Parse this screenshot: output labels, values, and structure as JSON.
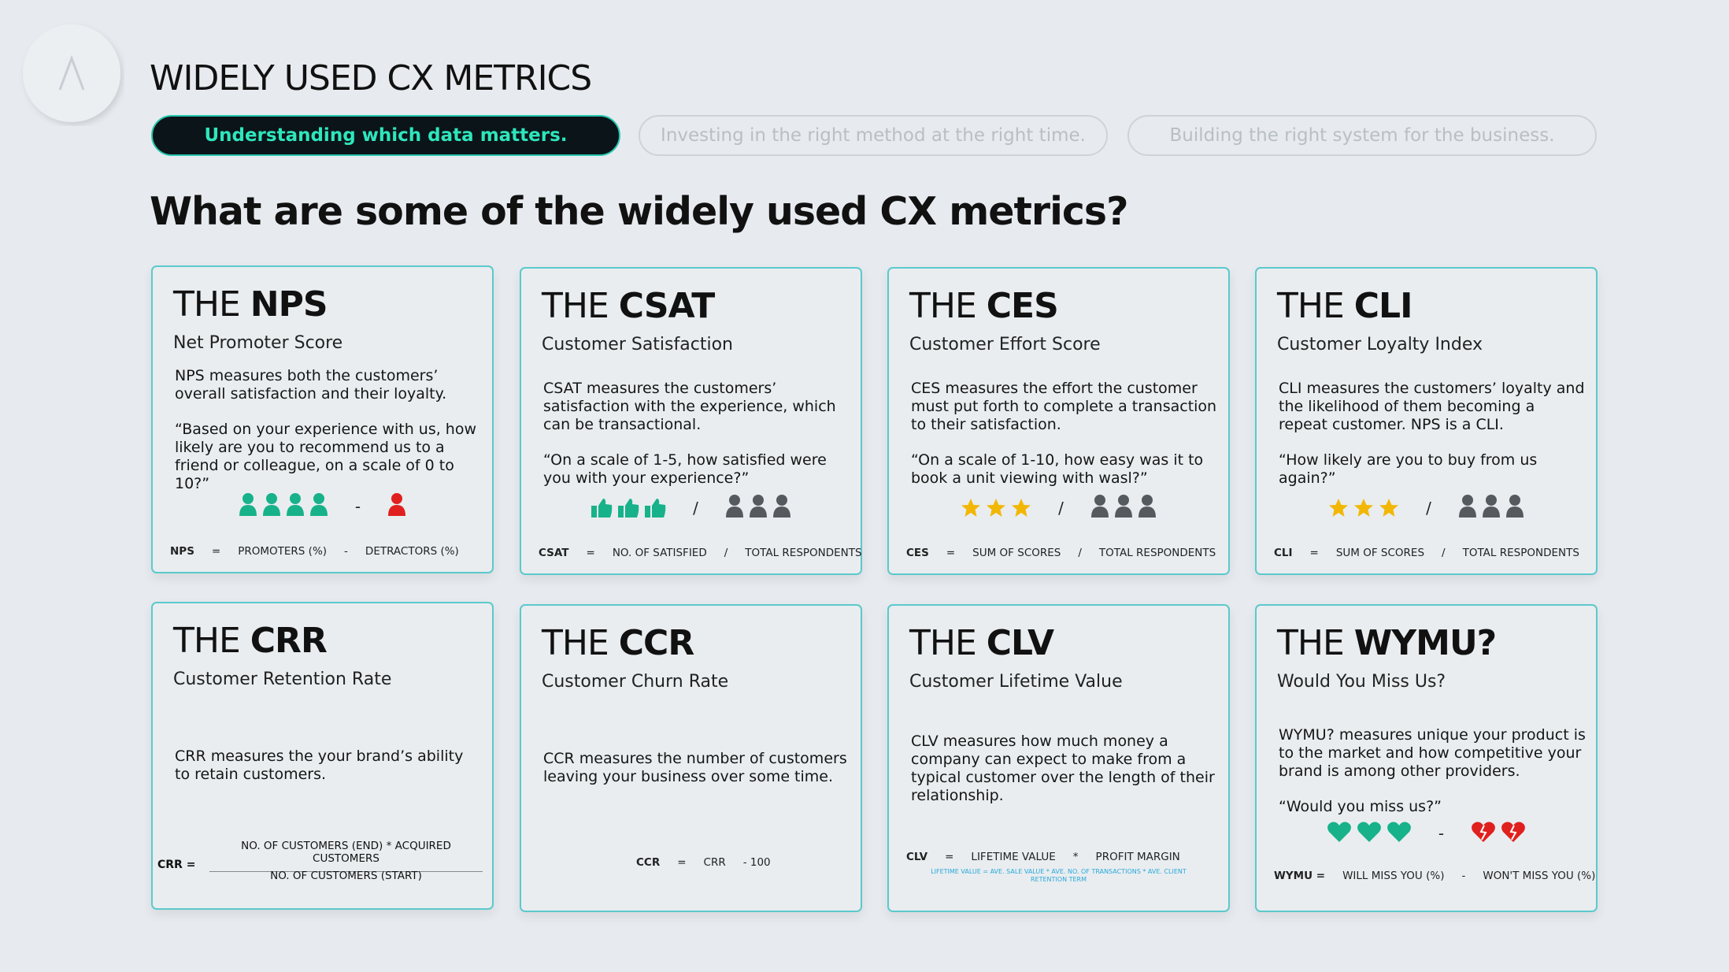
{
  "header": {
    "title": "WIDELY USED CX METRICS"
  },
  "tabs": [
    "Understanding which data matters.",
    "Investing in the right method at the right time.",
    "Building the right system for the business."
  ],
  "question": "What are some of the widely used CX metrics?",
  "cards": [
    {
      "prefix": "THE",
      "abbr": "NPS",
      "name": "Net Promoter Score",
      "description": "NPS measures both the customers’ overall satisfaction and their loyalty.",
      "quote": "“Based on your experience with us, how likely are you to recommend us to a friend or colleague, on a scale of 0 to 10?”",
      "icon_operator": "-",
      "formula": [
        "NPS",
        "=",
        "PROMOTERS (%)",
        "-",
        "DETRACTORS (%)"
      ]
    },
    {
      "prefix": "THE",
      "abbr": "CSAT",
      "name": "Customer Satisfaction",
      "description": "CSAT measures the customers’ satisfaction with the experience, which can be transactional.",
      "quote": "“On a scale of 1-5, how satisfied were you with your experience?”",
      "icon_operator": "/",
      "formula": [
        "CSAT",
        "=",
        "NO. OF SATISFIED",
        "/",
        "TOTAL RESPONDENTS"
      ]
    },
    {
      "prefix": "THE",
      "abbr": "CES",
      "name": "Customer Effort Score",
      "description": "CES measures the effort the customer must put forth to complete a transaction to their satisfaction.",
      "quote": "“On a scale of 1-10, how easy was it to book a unit viewing with wasl?”",
      "icon_operator": "/",
      "formula": [
        "CES",
        "=",
        "SUM OF SCORES",
        "/",
        "TOTAL RESPONDENTS"
      ]
    },
    {
      "prefix": "THE",
      "abbr": "CLI",
      "name": "Customer Loyalty Index",
      "description": "CLI measures the customers’ loyalty and the likelihood of them becoming a repeat customer. NPS is a CLI.",
      "quote": "“How likely are you to buy from us again?”",
      "icon_operator": "/",
      "formula": [
        "CLI",
        "=",
        "SUM OF SCORES",
        "/",
        "TOTAL RESPONDENTS"
      ]
    },
    {
      "prefix": "THE",
      "abbr": "CRR",
      "name": "Customer Retention Rate",
      "description": "CRR measures the your brand’s ability to retain customers.",
      "formula": [
        "CRR ="
      ],
      "numerator": "NO. OF CUSTOMERS (END) * ACQUIRED CUSTOMERS",
      "denominator": "NO. OF CUSTOMERS (START)"
    },
    {
      "prefix": "THE",
      "abbr": "CCR",
      "name": "Customer Churn Rate",
      "description": "CCR measures the number of customers leaving your business over some time.",
      "formula": [
        "CCR",
        "=",
        "CRR",
        "- 100"
      ]
    },
    {
      "prefix": "THE",
      "abbr": "CLV",
      "name": "Customer Lifetime Value",
      "description": "CLV measures how much money a company can expect to make from a typical customer over the length of their relationship.",
      "formula": [
        "CLV",
        "=",
        "LIFETIME VALUE",
        "*",
        "PROFIT MARGIN"
      ],
      "formula_note": "LIFETIME VALUE = AVE. SALE VALUE * AVE. NO. OF TRANSACTIONS * AVE. CLIENT RETENTION TERM"
    },
    {
      "prefix": "THE",
      "abbr": "WYMU?",
      "name": "Would You Miss Us?",
      "description": "WYMU? measures unique your product is to the market and how competitive your brand is among other providers.",
      "quote": "“Would you miss us?”",
      "icon_operator": "-",
      "formula": [
        "WYMU =",
        "WILL MISS YOU (%)",
        "-",
        "WON'T MISS YOU (%)"
      ]
    }
  ]
}
